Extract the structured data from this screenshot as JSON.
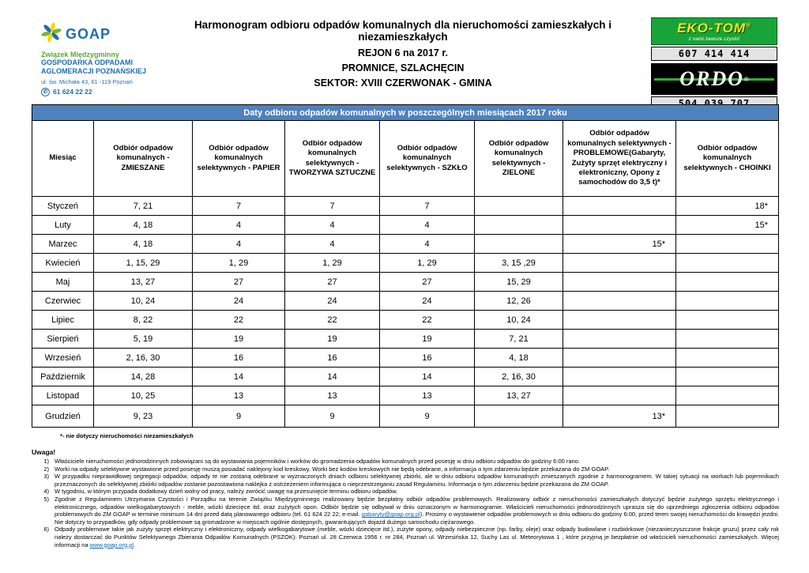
{
  "header": {
    "goap": {
      "name": "GOAP",
      "line1": "Związek Międzygminny",
      "line2": "GOSPODARKA ODPADAMI",
      "line3": "AGLOMERACJI POZNAŃSKIEJ",
      "address": "ul. św. Michała 43, 61 -119 Poznań",
      "phone": "61 624 22 22"
    },
    "title_line1": "Harmonogram odbioru odpadów komunalnych dla nieruchomości zamieszkałych i niezamieszkałych",
    "title_line2": "REJON 6 na 2017 r.",
    "title_line3": "PROMNICE, SZLACHĘCIN",
    "title_line4": "SEKTOR: XVIII CZERWONAK - GMINA",
    "ekotom": {
      "name": "EKO-TOM",
      "tagline": "z nami zawsze czysto!",
      "phone": "607 414 414"
    },
    "ordo": {
      "name": "ORDO",
      "phone": "504 039 707"
    }
  },
  "table": {
    "banner": "Daty odbioru odpadów komunalnych w poszczególnych miesiącach 2017 roku",
    "columns": [
      "Miesiąc",
      "Odbiór odpadów komunalnych - ZMIESZANE",
      "Odbiór odpadów komunalnych selektywnych - PAPIER",
      "Odbiór odpadów komunalnych selektywnych - TWORZYWA SZTUCZNE",
      "Odbiór odpadów komunalnych selektywnych - SZKŁO",
      "Odbiór odpadów komunalnych selektywnych - ZIELONE",
      "Odbiór odpadów komunalnych selektywnych - PROBLEMOWE(Gabaryty, Zużyty sprzęt elektryczny i elektroniczny, Opony z samochodów do 3,5 t)*",
      "Odbiór odpadów komunalnych selektywnych - CHOINKI"
    ],
    "rows": [
      {
        "month": "Styczeń",
        "values": [
          "7, 21",
          "7",
          "7",
          "7",
          "",
          "",
          "18*"
        ]
      },
      {
        "month": "Luty",
        "values": [
          "4, 18",
          "4",
          "4",
          "4",
          "",
          "",
          "15*"
        ]
      },
      {
        "month": "Marzec",
        "values": [
          "4, 18",
          "4",
          "4",
          "4",
          "",
          "15*",
          ""
        ]
      },
      {
        "month": "Kwiecień",
        "values": [
          "1, 15, 29",
          "1, 29",
          "1, 29",
          "1, 29",
          "3, 15 ,29",
          "",
          ""
        ]
      },
      {
        "month": "Maj",
        "values": [
          "13, 27",
          "27",
          "27",
          "27",
          "15, 29",
          "",
          ""
        ]
      },
      {
        "month": "Czerwiec",
        "values": [
          "10, 24",
          "24",
          "24",
          "24",
          "12, 26",
          "",
          ""
        ]
      },
      {
        "month": "Lipiec",
        "values": [
          "8, 22",
          "22",
          "22",
          "22",
          "10, 24",
          "",
          ""
        ]
      },
      {
        "month": "Sierpień",
        "values": [
          "5, 19",
          "19",
          "19",
          "19",
          "7, 21",
          "",
          ""
        ]
      },
      {
        "month": "Wrzesień",
        "values": [
          "2, 16, 30",
          "16",
          "16",
          "16",
          "4, 18",
          "",
          ""
        ]
      },
      {
        "month": "Październik",
        "values": [
          "14, 28",
          "14",
          "14",
          "14",
          "2, 16, 30",
          "",
          ""
        ]
      },
      {
        "month": "Listopad",
        "values": [
          "10, 25",
          "13",
          "13",
          "13",
          "13, 27",
          "",
          ""
        ]
      },
      {
        "month": "Grudzień",
        "values": [
          "9, 23",
          "9",
          "9",
          "9",
          "",
          "13*",
          ""
        ]
      }
    ]
  },
  "footnote": "*- nie dotyczy nieruchomości niezamieszkałych",
  "notes": {
    "title": "Uwaga!",
    "items": [
      {
        "num": "1)",
        "parts": [
          {
            "text": "Właściciele nieruchomości jednorodzinnych zobowiązani są do wystawiania pojemników i worków do gromadzenia  odpadów komunalnych przed posesję w dniu odbioru odpadów do godziny 6:00 rano."
          }
        ]
      },
      {
        "num": "2)",
        "parts": [
          {
            "text": "Worki na odpady selektywne wystawione przed posesję muszą posiadać naklejony kod kreskowy. Worki bez kodów kreskowych nie będą odebrane, a informacja o tym zdarzeniu będzie przekazana do ZM GOAP."
          }
        ]
      },
      {
        "num": "3)",
        "parts": [
          {
            "text": "W przypadku nieprawidłowej segregacji odpadów, odpady te nie zostaną odebrane w wyznaczonych dniach odbioru selektywnej zbiórki, ale w dniu odbioru odpadów komunalnych zmieszanych zgodnie z harmonogramem. W takiej sytuacji na workach lub pojemnikach przeznaczonych do  selektywnej zbiórki odpadów zostanie pozostawiona naklejka z ostrzeżeniem informująca o nieprzestrzeganiu zasad Regulaminu. Informacja o tym zdarzeniu będzie przekazana do ZM GOAP."
          }
        ]
      },
      {
        "num": "4)",
        "parts": [
          {
            "text": "W tygodniu, w którym przypada dodatkowy dzień wolny od pracy, należy zwrócić uwagę na przesunięcie terminu odbioru odpadów."
          }
        ]
      },
      {
        "num": "5)",
        "parts": [
          {
            "text": "Zgodnie z Regulaminem Utrzymania Czystości i Porządku na terenie Związku Międzygminnego realizowany będzie bezpłatny odbiór odpadów problemowych. Realizowany odbiór z nieruchomości zamieszkałych dotyczyć będzie zużytego sprzętu elektrycznego i elektronicznego, odpadów wielkogabarytowych - meble, wózki dziecięce itd. oraz zużytych opon. Odbiór będzie się odbywał w dniu oznaczonym w harmonogramie. Właścicieli nieruchomości jednorodzinnych uprasza się do uprzedniego zgłoszenia odbioru odpadów problemowych do ZM GOAP w terminie minimum 14 dni przed datą planowanego odbioru (tel. 61 624 22 22; e-mail. "
          },
          {
            "text": "gabaryty@goap.org.pl",
            "link": true
          },
          {
            "text": ").  Prosimy o wystawienie  odpadów  problemowych w dniu odbioru do godziny 6:00, przed teren swojej  nieruchomości do krawędzi jezdni. Nie dotyczy to przypadków, gdy odpady problemowe są gromadzone w miejscach ogólnie dostępnych, gwarantujących dojazd dużego samochodu ciężarowego."
          }
        ]
      },
      {
        "num": "6)",
        "parts": [
          {
            "text": "Odpady problemowe takie jak zużyty sprzęt elektryczny i elektroniczny, odpady wielkogabarytowe (meble, wózki dziecięce itd.), zużyte opony, odpady niebezpieczne (np. farby, oleje) oraz odpady budowlane i rozbiórkowe (niezanieczyszczone frakcje gruzu) przez cały rok należy dostarczać do Punktów Selektywnego Zbierania Odpadów Komunalnych (PSZOK): Poznań ul. 28 Czerwca 1956 r. nr 284, Poznań ul. Wrzesińska 12, Suchy Las ul. Meteorytowa 1 , które przyjmą je bezpłatnie od właścicieli nieruchomości zamieszkałych. Więcej informacji na "
          },
          {
            "text": "www.goap.org.pl",
            "link": true
          },
          {
            "text": "."
          }
        ]
      }
    ]
  }
}
